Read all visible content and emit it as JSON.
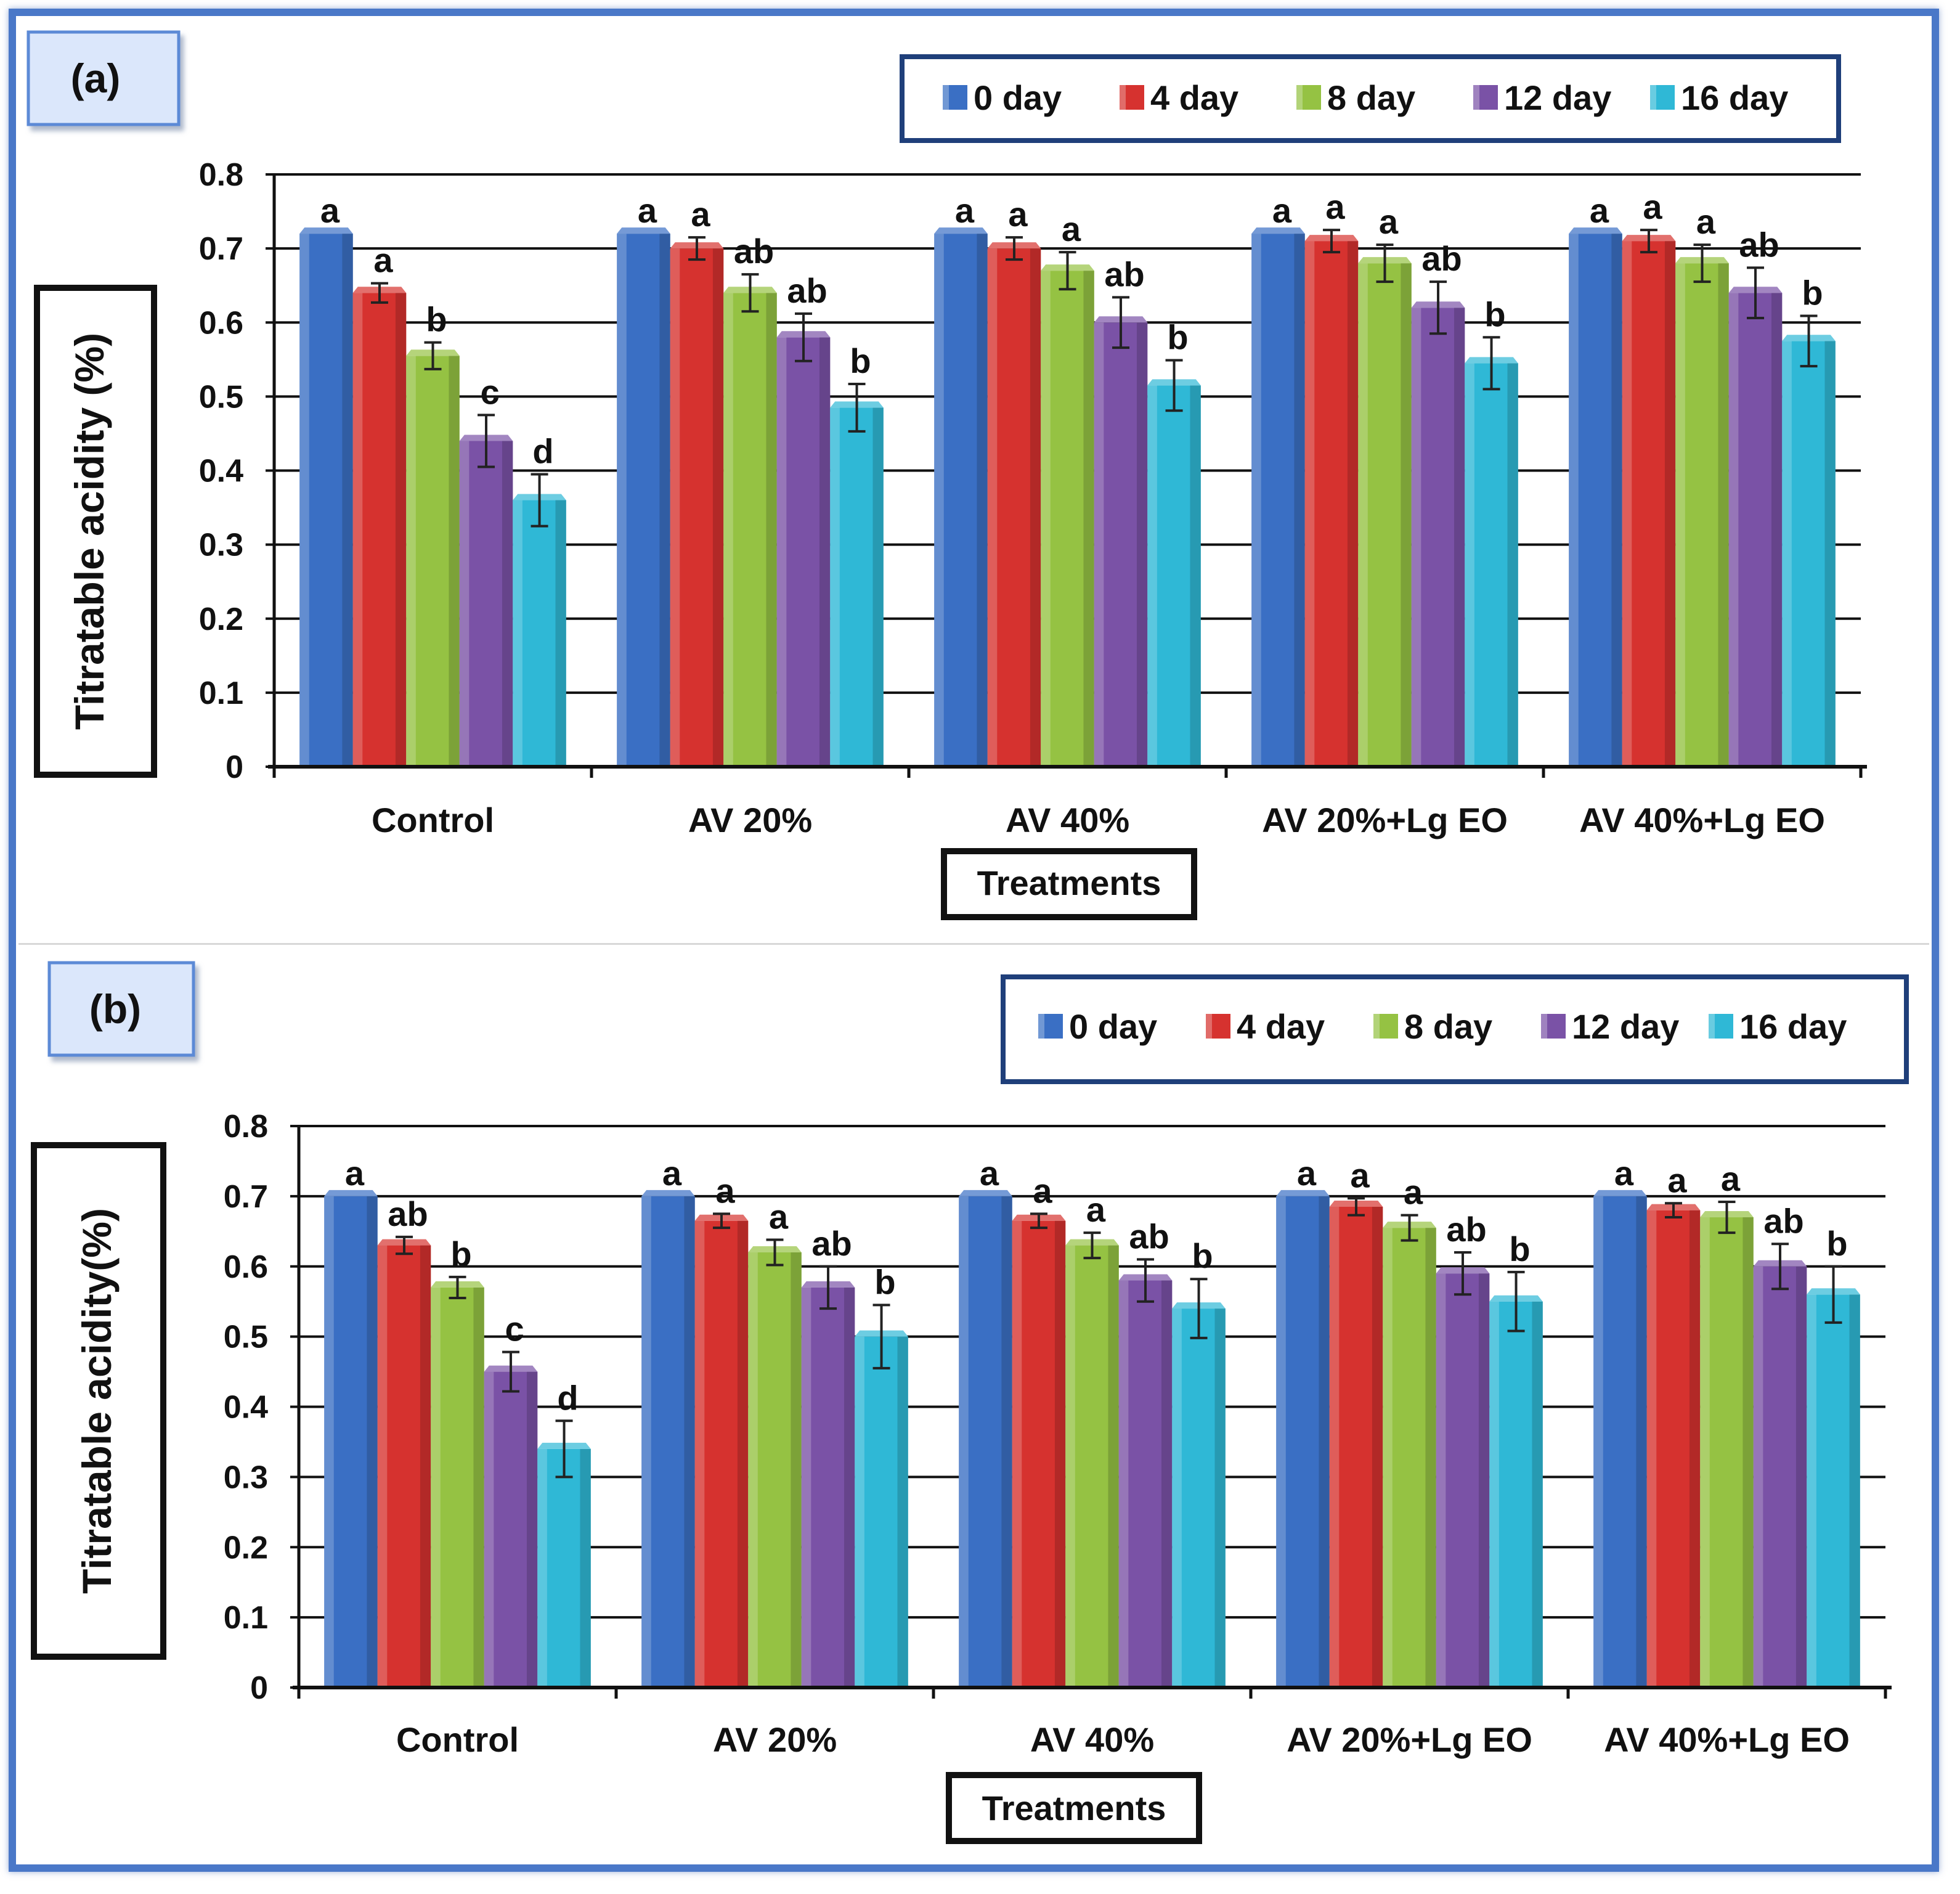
{
  "chart_data": [
    {
      "panel_label": "(a)",
      "type": "bar",
      "categories": [
        "Control",
        "AV 20%",
        "AV 40%",
        "AV 20%+Lg EO",
        "AV 40%+Lg EO"
      ],
      "series": [
        {
          "name": "0 day",
          "color": "#3a6fc4",
          "values": [
            0.72,
            0.72,
            0.72,
            0.72,
            0.72
          ],
          "errors": [
            0,
            0,
            0,
            0,
            0
          ],
          "letters": [
            "a",
            "a",
            "a",
            "a",
            "a"
          ]
        },
        {
          "name": "4 day",
          "color": "#d6322f",
          "values": [
            0.64,
            0.7,
            0.7,
            0.71,
            0.71
          ],
          "errors": [
            0.013,
            0.015,
            0.015,
            0.015,
            0.015
          ],
          "letters": [
            "a",
            "a",
            "a",
            "a",
            "a"
          ]
        },
        {
          "name": "8 day",
          "color": "#95c243",
          "values": [
            0.555,
            0.64,
            0.67,
            0.68,
            0.68
          ],
          "errors": [
            0.018,
            0.025,
            0.025,
            0.025,
            0.025
          ],
          "letters": [
            "b",
            "ab",
            "a",
            "a",
            "a"
          ]
        },
        {
          "name": "12 day",
          "color": "#7a52a6",
          "values": [
            0.44,
            0.58,
            0.6,
            0.62,
            0.64
          ],
          "errors": [
            0.035,
            0.032,
            0.034,
            0.035,
            0.034
          ],
          "letters": [
            "c",
            "ab",
            "ab",
            "ab",
            "ab"
          ]
        },
        {
          "name": "16 day",
          "color": "#2fb8d6",
          "values": [
            0.36,
            0.485,
            0.515,
            0.545,
            0.575
          ],
          "errors": [
            0.035,
            0.032,
            0.034,
            0.035,
            0.034
          ],
          "letters": [
            "d",
            "b",
            "b",
            "b",
            "b"
          ]
        }
      ],
      "xlabel": "Treatments",
      "ylabel": "Titratable acidity  (%)",
      "ylim": [
        0,
        0.8
      ],
      "yticks": [
        "0",
        "0.1",
        "0.2",
        "0.3",
        "0.4",
        "0.5",
        "0.6",
        "0.7",
        "0.8"
      ],
      "grid": true,
      "legend_position": "top-right"
    },
    {
      "panel_label": "(b)",
      "type": "bar",
      "categories": [
        "Control",
        "AV 20%",
        "AV 40%",
        "AV 20%+Lg EO",
        "AV 40%+Lg EO"
      ],
      "series": [
        {
          "name": "0 day",
          "color": "#3a6fc4",
          "values": [
            0.7,
            0.7,
            0.7,
            0.7,
            0.7
          ],
          "errors": [
            0,
            0,
            0,
            0,
            0
          ],
          "letters": [
            "a",
            "a",
            "a",
            "a",
            "a"
          ]
        },
        {
          "name": "4 day",
          "color": "#d6322f",
          "values": [
            0.63,
            0.665,
            0.665,
            0.685,
            0.68
          ],
          "errors": [
            0.012,
            0.01,
            0.01,
            0.012,
            0.01
          ],
          "letters": [
            "ab",
            "a",
            "a",
            "a",
            "a"
          ]
        },
        {
          "name": "8 day",
          "color": "#95c243",
          "values": [
            0.57,
            0.62,
            0.63,
            0.655,
            0.67
          ],
          "errors": [
            0.015,
            0.018,
            0.018,
            0.018,
            0.022
          ],
          "letters": [
            "b",
            "a",
            "a",
            "a",
            "a"
          ]
        },
        {
          "name": "12 day",
          "color": "#7a52a6",
          "values": [
            0.45,
            0.57,
            0.58,
            0.59,
            0.6
          ],
          "errors": [
            0.028,
            0.03,
            0.03,
            0.03,
            0.032
          ],
          "letters": [
            "c",
            "ab",
            "ab",
            "ab",
            "ab"
          ]
        },
        {
          "name": "16 day",
          "color": "#2fb8d6",
          "values": [
            0.34,
            0.5,
            0.54,
            0.55,
            0.56
          ],
          "errors": [
            0.04,
            0.045,
            0.042,
            0.042,
            0.04
          ],
          "letters": [
            "d",
            "b",
            "b",
            "b",
            "b"
          ]
        }
      ],
      "xlabel": "Treatments",
      "ylabel": "Titratable acidity(%)",
      "ylim": [
        0,
        0.8
      ],
      "yticks": [
        "0",
        "0.1",
        "0.2",
        "0.3",
        "0.4",
        "0.5",
        "0.6",
        "0.7",
        "0.8"
      ],
      "grid": true,
      "legend_position": "top-right"
    }
  ]
}
